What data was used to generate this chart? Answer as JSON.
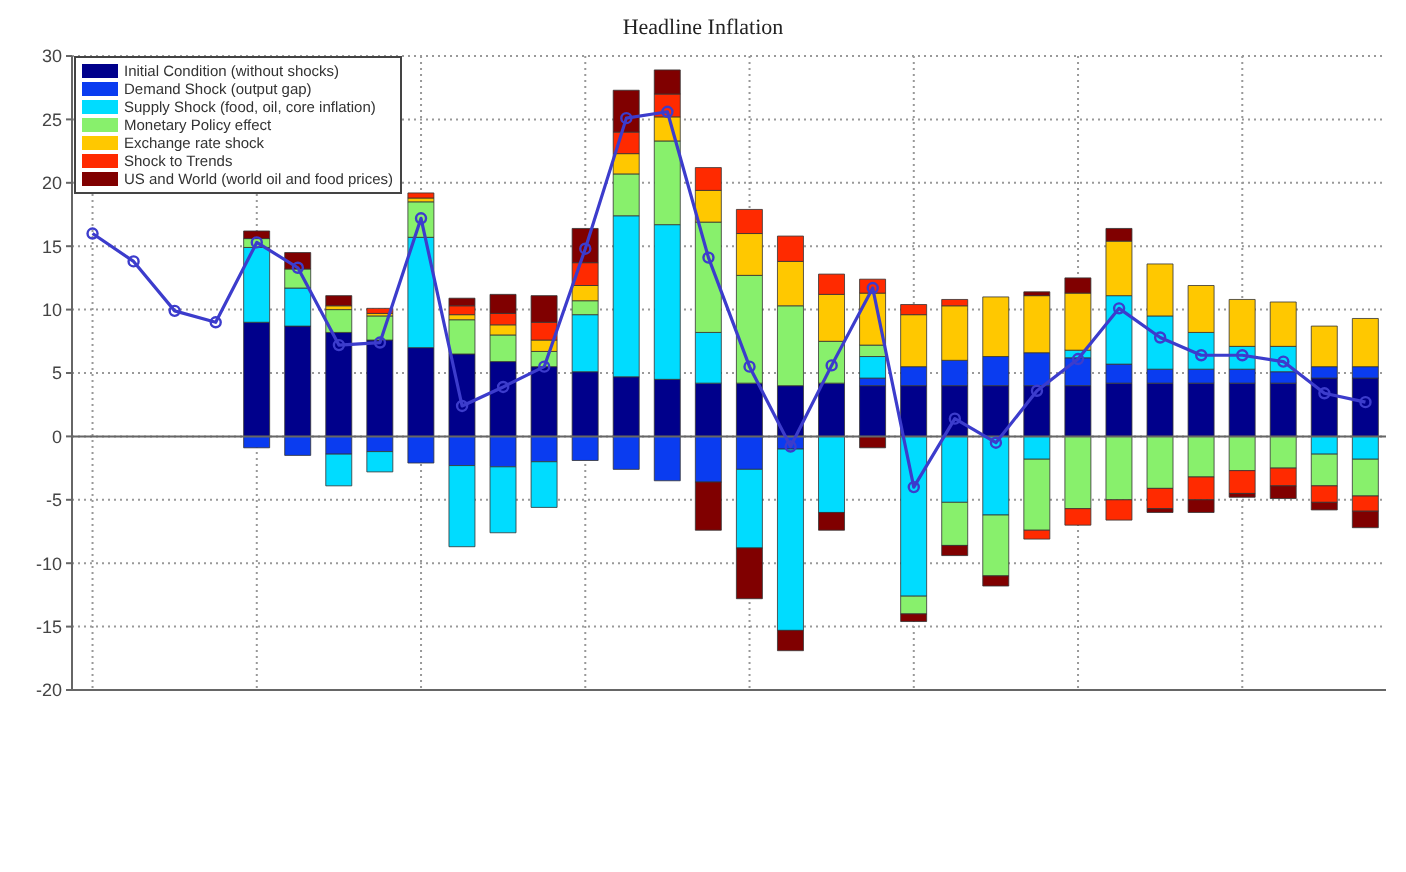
{
  "chart_data": {
    "type": "bar",
    "title": "Headline Inflation",
    "stacked": true,
    "categories": [
      null,
      null,
      null,
      null,
      null,
      null,
      null,
      null,
      null,
      null,
      null,
      null,
      null,
      null,
      null,
      null,
      null,
      null,
      null,
      null,
      null,
      null,
      null,
      null,
      null,
      null,
      null,
      null,
      null,
      null,
      null,
      null
    ],
    "series": [
      {
        "name": "Initial Condition (without shocks)",
        "color": "#00008b",
        "values": [
          null,
          null,
          null,
          null,
          9.0,
          8.7,
          8.2,
          7.6,
          7.0,
          6.5,
          5.9,
          5.5,
          5.1,
          4.7,
          4.5,
          4.2,
          4.2,
          4.0,
          4.2,
          4.0,
          4.0,
          4.0,
          4.0,
          4.0,
          4.0,
          4.2,
          4.2,
          4.2,
          4.2,
          4.2,
          4.6,
          4.6
        ]
      },
      {
        "name": "Demand Shock (output gap)",
        "color": "#0a3cf0",
        "values": [
          null,
          null,
          null,
          null,
          -0.9,
          -1.5,
          -1.4,
          -1.2,
          -2.1,
          -2.3,
          -2.4,
          -2.0,
          -1.9,
          -2.6,
          -3.5,
          -3.6,
          -2.6,
          -1.0,
          null,
          0.6,
          1.5,
          2.0,
          2.3,
          2.6,
          2.2,
          1.5,
          1.1,
          1.1,
          1.1,
          0.9,
          0.9,
          0.9
        ]
      },
      {
        "name": "Supply Shock (food, oil, core inflation)",
        "color": "#00dcff",
        "values": [
          null,
          null,
          null,
          null,
          5.9,
          3.0,
          -2.5,
          -1.6,
          8.7,
          -6.4,
          -5.2,
          -3.6,
          4.5,
          12.7,
          12.2,
          4.0,
          -6.2,
          -14.3,
          -6.0,
          1.7,
          -12.6,
          -5.2,
          -6.2,
          -1.8,
          0.6,
          5.4,
          4.2,
          2.9,
          1.8,
          2.0,
          -1.4,
          -1.8
        ]
      },
      {
        "name": "Monetary Policy effect",
        "color": "#88f06c",
        "values": [
          null,
          null,
          null,
          null,
          0.7,
          1.5,
          1.8,
          1.9,
          2.8,
          2.7,
          2.1,
          1.2,
          1.1,
          3.3,
          6.6,
          8.7,
          8.5,
          6.3,
          3.3,
          0.9,
          -1.4,
          -3.4,
          -4.8,
          -5.6,
          -5.7,
          -5.0,
          -4.1,
          -3.2,
          -2.7,
          -2.5,
          -2.5,
          -2.9
        ]
      },
      {
        "name": "Exchange rate shock",
        "color": "#ffc800",
        "values": [
          null,
          null,
          null,
          null,
          null,
          null,
          0.3,
          0.2,
          0.3,
          0.4,
          0.8,
          0.9,
          1.2,
          1.6,
          1.9,
          2.5,
          3.3,
          3.5,
          3.7,
          4.1,
          4.1,
          4.3,
          4.7,
          4.5,
          4.5,
          4.3,
          4.1,
          3.7,
          3.7,
          3.5,
          3.2,
          3.8
        ]
      },
      {
        "name": "Shock to Trends",
        "color": "#ff2a00",
        "values": [
          null,
          null,
          null,
          null,
          null,
          null,
          null,
          0.4,
          0.4,
          0.7,
          0.9,
          1.4,
          1.8,
          1.7,
          1.8,
          1.8,
          1.9,
          2.0,
          1.6,
          1.1,
          0.8,
          0.5,
          null,
          -0.7,
          -1.3,
          -1.6,
          -1.6,
          -1.8,
          -1.8,
          -1.4,
          -1.3,
          -1.2
        ]
      },
      {
        "name": "US and World (world oil and food prices)",
        "color": "#800000",
        "values": [
          null,
          null,
          null,
          null,
          0.6,
          1.3,
          0.8,
          null,
          null,
          0.6,
          1.5,
          2.1,
          2.7,
          3.3,
          1.9,
          -3.8,
          -4.0,
          -1.6,
          -1.4,
          -0.9,
          -0.6,
          -0.8,
          -0.8,
          0.3,
          1.2,
          1.0,
          -0.3,
          -1.0,
          -0.3,
          -1.0,
          -0.6,
          -1.3
        ]
      },
      {
        "type": "line",
        "color": "#3c3ccc",
        "values": [
          16.0,
          13.8,
          9.9,
          9.0,
          15.3,
          13.3,
          7.2,
          7.4,
          17.2,
          2.4,
          3.9,
          5.5,
          14.8,
          25.1,
          25.6,
          14.1,
          5.5,
          -0.8,
          5.6,
          11.7,
          -4.0,
          1.4,
          -0.5,
          3.6,
          6.1,
          10.1,
          7.8,
          6.4,
          6.4,
          5.9,
          3.4,
          2.7
        ]
      }
    ],
    "ylim": [
      -20,
      30
    ],
    "yticks": [
      -20,
      -15,
      -10,
      -5,
      0,
      5,
      10,
      15,
      20,
      25,
      30
    ],
    "grid": true,
    "legend": "top left",
    "marker": "circle",
    "line_style": "solid",
    "tick_labels": "y"
  }
}
